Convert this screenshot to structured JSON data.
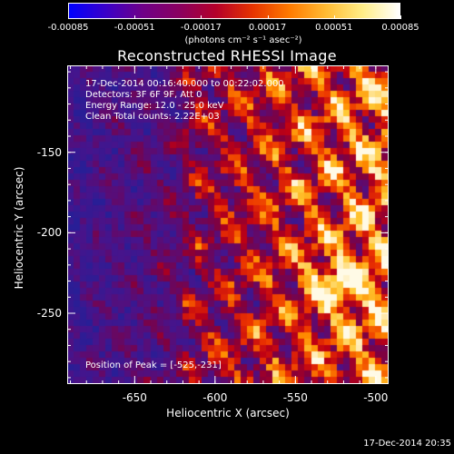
{
  "colorbar": {
    "ticks": [
      "-0.00085",
      "-0.00051",
      "-0.00017",
      "0.00017",
      "0.00051",
      "0.00085"
    ],
    "tick_values": [
      -0.00085,
      -0.00051,
      -0.00017,
      0.00017,
      0.00051,
      0.00085
    ],
    "units": "(photons cm⁻² s⁻¹ asec⁻²)",
    "range": [
      -0.00085,
      0.00085
    ],
    "colors": [
      "#0000ff",
      "#3a00c8",
      "#6e0088",
      "#8a0060",
      "#b4002a",
      "#e63300",
      "#ff7a00",
      "#ffbb33",
      "#ffee88",
      "#ffffff"
    ]
  },
  "chart_data": {
    "type": "heatmap",
    "title": "Reconstructed RHESSI Image",
    "xlabel": "Heliocentric X (arcsec)",
    "ylabel": "Heliocentric Y (arcsec)",
    "xlim": [
      -692,
      -492
    ],
    "ylim": [
      -294,
      -96
    ],
    "xticks": [
      "-650",
      "-600",
      "-550",
      "-500"
    ],
    "xtick_values": [
      -650,
      -600,
      -550,
      -500
    ],
    "yticks": [
      "-150",
      "-200",
      "-250"
    ],
    "ytick_values": [
      -150,
      -200,
      -250
    ],
    "value_range": [
      -0.00085,
      0.00085
    ],
    "peak": [
      -525,
      -231
    ],
    "annotations": [
      "17-Dec-2014 00:16:40.000 to 00:22:02.000",
      "Detectors: 3F 6F 9F, Att 0",
      "Energy Range: 12.0 - 25.0 keV",
      "Clean     Total counts: 2.22E+03"
    ],
    "peak_label": "Position of Peak = [-525,-231]"
  },
  "footer": "17-Dec-2014 20:35"
}
